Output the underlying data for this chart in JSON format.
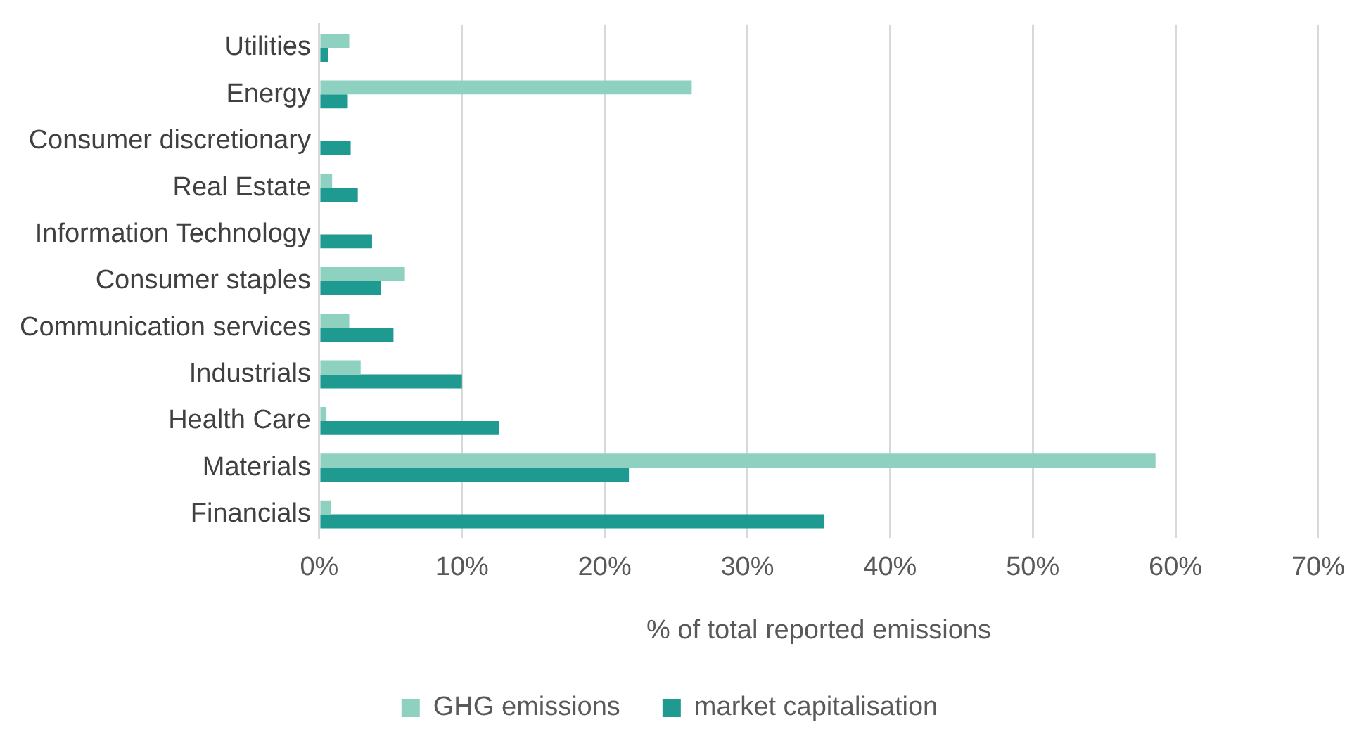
{
  "chart_data": {
    "type": "bar",
    "orientation": "horizontal",
    "xlabel": "% of total reported emissions",
    "categories": [
      "Utilities",
      "Energy",
      "Consumer discretionary",
      "Real Estate",
      "Information Technology",
      "Consumer staples",
      "Communication services",
      "Industrials",
      "Health Care",
      "Materials",
      "Financials"
    ],
    "series": [
      {
        "name": "GHG emissions",
        "color": "#8fd1c1",
        "values": [
          2.1,
          26.1,
          0,
          0.9,
          0,
          6.0,
          2.1,
          2.9,
          0.5,
          58.6,
          0.8
        ]
      },
      {
        "name": "market capitalisation",
        "color": "#1e9a91",
        "values": [
          0.6,
          2.0,
          2.2,
          2.7,
          3.7,
          4.3,
          5.2,
          10.0,
          12.6,
          21.7,
          35.4
        ]
      }
    ],
    "xlim": [
      0,
      70
    ],
    "xticks": [
      {
        "value": 0,
        "label": "0%"
      },
      {
        "value": 10,
        "label": "10%"
      },
      {
        "value": 20,
        "label": "20%"
      },
      {
        "value": 30,
        "label": "30%"
      },
      {
        "value": 40,
        "label": "40%"
      },
      {
        "value": 50,
        "label": "50%"
      },
      {
        "value": 60,
        "label": "60%"
      },
      {
        "value": 70,
        "label": "70%"
      }
    ],
    "grid": "x",
    "legend": "bottom"
  }
}
